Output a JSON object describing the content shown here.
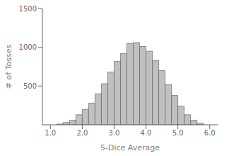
{
  "chart_data": {
    "type": "histogram",
    "xlabel": "5-Dice Average",
    "ylabel": "# of Tosses",
    "bins": [
      1.2,
      1.4,
      1.6,
      1.8,
      2.0,
      2.2,
      2.4,
      2.6,
      2.8,
      3.0,
      3.2,
      3.4,
      3.6,
      3.8,
      4.0,
      4.2,
      4.4,
      4.6,
      4.8,
      5.0,
      5.2,
      5.4,
      5.6,
      5.8
    ],
    "values": [
      10,
      30,
      60,
      130,
      200,
      280,
      400,
      530,
      680,
      820,
      920,
      1050,
      1060,
      1010,
      950,
      830,
      700,
      520,
      380,
      240,
      130,
      60,
      20
    ],
    "color": "#c0c0c0",
    "xlim": [
      0.75,
      6.25
    ],
    "ylim": [
      0,
      1500
    ],
    "xticks": [
      {
        "value": 1.0,
        "label": "1.0"
      },
      {
        "value": 2.0,
        "label": "2.0"
      },
      {
        "value": 3.0,
        "label": "3.0"
      },
      {
        "value": 4.0,
        "label": "4.0"
      },
      {
        "value": 5.0,
        "label": "5.0"
      },
      {
        "value": 6.0,
        "label": "6.0"
      }
    ],
    "yticks": [
      500,
      1000,
      1500
    ],
    "grid": false
  }
}
